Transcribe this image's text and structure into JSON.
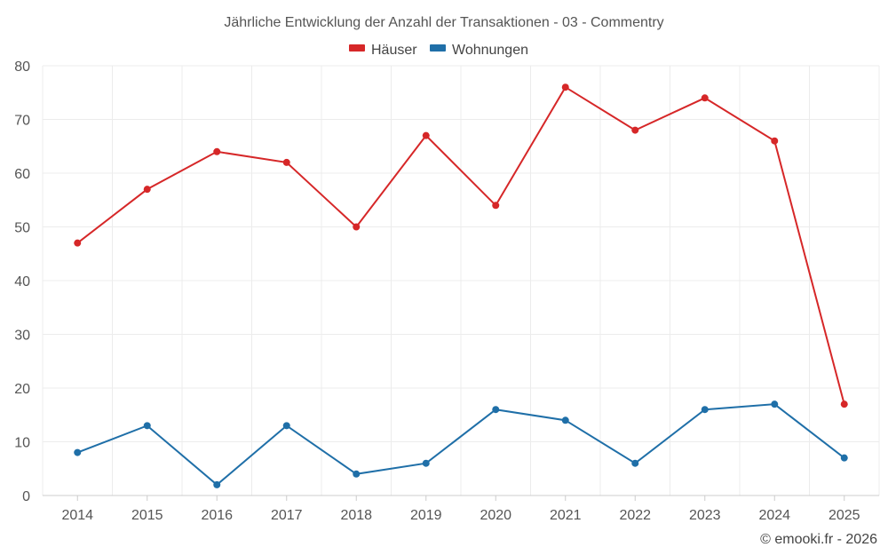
{
  "chart_data": {
    "type": "line",
    "title": "Jährliche Entwicklung der Anzahl der Transaktionen - 03 - Commentry",
    "categories": [
      "2014",
      "2015",
      "2016",
      "2017",
      "2018",
      "2019",
      "2020",
      "2021",
      "2022",
      "2023",
      "2024",
      "2025"
    ],
    "ylim": [
      0,
      80
    ],
    "yticks": [
      0,
      10,
      20,
      30,
      40,
      50,
      60,
      70,
      80
    ],
    "grid": true,
    "legend_position": "top-center",
    "series": [
      {
        "name": "Häuser",
        "color": "#d62728",
        "values": [
          47,
          57,
          64,
          62,
          50,
          67,
          54,
          76,
          68,
          74,
          66,
          17
        ]
      },
      {
        "name": "Wohnungen",
        "color": "#1f6fa8",
        "values": [
          8,
          13,
          2,
          13,
          4,
          6,
          16,
          14,
          6,
          16,
          17,
          7
        ]
      }
    ]
  },
  "footer": {
    "copyright": "© emooki.fr - 2026"
  }
}
